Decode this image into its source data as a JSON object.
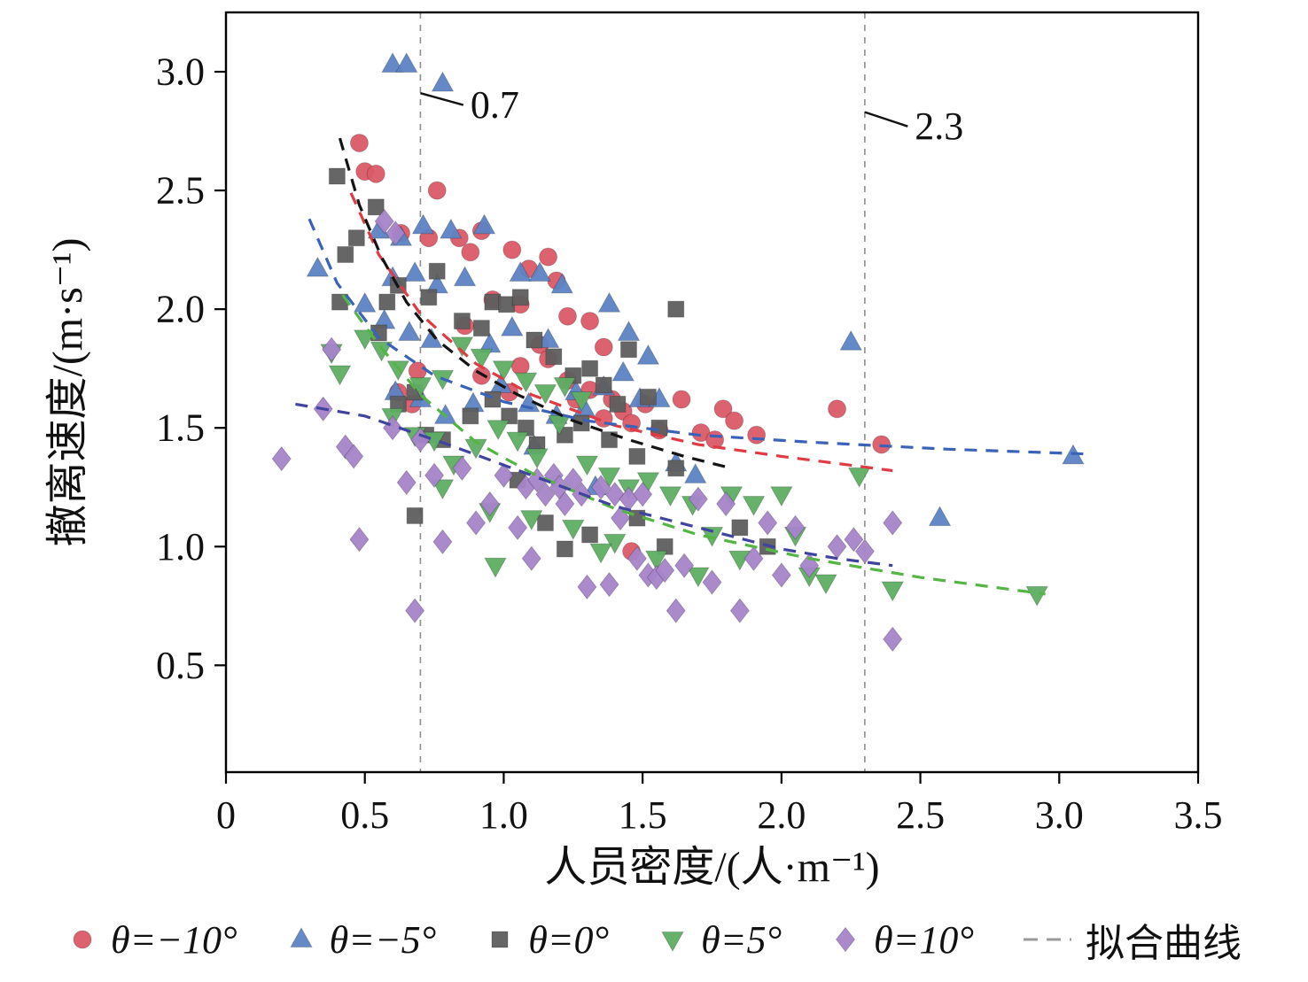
{
  "chart_data": {
    "type": "scatter",
    "title": "",
    "xlabel": "人员密度/(人·m⁻¹)",
    "ylabel": "撤离速度/(m·s⁻¹)",
    "xlim": [
      0,
      3.5
    ],
    "ylim": [
      0.05,
      3.25
    ],
    "x_tick_values": [
      0,
      0.5,
      1.0,
      1.5,
      2.0,
      2.5,
      3.0,
      3.5
    ],
    "x_tick_labels": [
      "0",
      "0.5",
      "1.0",
      "1.5",
      "2.0",
      "2.5",
      "3.0",
      "3.5"
    ],
    "y_tick_values": [
      0.5,
      1.0,
      1.5,
      2.0,
      2.5,
      3.0
    ],
    "y_tick_labels": [
      "0.5",
      "1.0",
      "1.5",
      "2.0",
      "2.5",
      "3.0"
    ],
    "grid": false,
    "legend_position": "bottom",
    "reference_lines": [
      {
        "x": 0.7,
        "label": "0.7",
        "color": "#8f8f8f",
        "label_x": 0.88,
        "label_y": 2.86,
        "leader_from_y": 2.91
      },
      {
        "x": 2.3,
        "label": "2.3",
        "color": "#8f8f8f",
        "label_x": 2.48,
        "label_y": 2.77,
        "leader_from_y": 2.83
      }
    ],
    "series": [
      {
        "name": "θ=−10°",
        "marker": "circle",
        "color": "#db5a68",
        "points": [
          [
            0.48,
            2.7
          ],
          [
            0.5,
            2.58
          ],
          [
            0.54,
            2.57
          ],
          [
            0.76,
            2.5
          ],
          [
            0.63,
            2.32
          ],
          [
            0.73,
            2.3
          ],
          [
            0.84,
            2.3
          ],
          [
            0.92,
            2.33
          ],
          [
            0.88,
            2.24
          ],
          [
            1.03,
            2.25
          ],
          [
            1.09,
            2.17
          ],
          [
            1.16,
            2.22
          ],
          [
            1.19,
            2.12
          ],
          [
            0.96,
            2.04
          ],
          [
            1.06,
            2.02
          ],
          [
            1.23,
            1.97
          ],
          [
            1.31,
            1.95
          ],
          [
            0.86,
            1.93
          ],
          [
            1.13,
            1.85
          ],
          [
            1.36,
            1.84
          ],
          [
            0.69,
            1.74
          ],
          [
            0.92,
            1.72
          ],
          [
            1.06,
            1.76
          ],
          [
            1.16,
            1.79
          ],
          [
            1.23,
            1.7
          ],
          [
            1.31,
            1.66
          ],
          [
            1.39,
            1.62
          ],
          [
            1.43,
            1.57
          ],
          [
            1.36,
            1.54
          ],
          [
            1.51,
            1.6
          ],
          [
            1.64,
            1.62
          ],
          [
            1.71,
            1.48
          ],
          [
            1.76,
            1.45
          ],
          [
            1.79,
            1.58
          ],
          [
            1.83,
            1.53
          ],
          [
            1.91,
            1.47
          ],
          [
            2.2,
            1.58
          ],
          [
            2.36,
            1.43
          ],
          [
            0.62,
            1.65
          ],
          [
            0.67,
            1.6
          ],
          [
            1.26,
            1.62
          ],
          [
            1.46,
            1.52
          ],
          [
            1.56,
            1.49
          ],
          [
            1.46,
            0.98
          ],
          [
            1.02,
            1.65
          ]
        ]
      },
      {
        "name": "θ=−5°",
        "marker": "triangle-up",
        "color": "#5c83c4",
        "points": [
          [
            0.6,
            3.03
          ],
          [
            0.65,
            3.03
          ],
          [
            0.78,
            2.95
          ],
          [
            0.33,
            2.17
          ],
          [
            0.55,
            2.33
          ],
          [
            0.63,
            2.3
          ],
          [
            0.71,
            2.35
          ],
          [
            0.81,
            2.33
          ],
          [
            0.93,
            2.35
          ],
          [
            0.6,
            2.13
          ],
          [
            0.68,
            2.15
          ],
          [
            0.76,
            2.1
          ],
          [
            0.86,
            2.13
          ],
          [
            1.06,
            2.15
          ],
          [
            1.13,
            2.15
          ],
          [
            1.21,
            2.1
          ],
          [
            1.38,
            2.02
          ],
          [
            1.45,
            1.9
          ],
          [
            1.52,
            1.8
          ],
          [
            0.57,
            1.95
          ],
          [
            0.66,
            1.9
          ],
          [
            0.74,
            1.87
          ],
          [
            0.95,
            1.85
          ],
          [
            1.03,
            1.92
          ],
          [
            1.16,
            1.87
          ],
          [
            1.26,
            1.65
          ],
          [
            1.36,
            1.67
          ],
          [
            1.43,
            1.73
          ],
          [
            1.49,
            1.62
          ],
          [
            1.56,
            1.62
          ],
          [
            1.62,
            1.35
          ],
          [
            1.69,
            1.3
          ],
          [
            0.61,
            1.65
          ],
          [
            0.7,
            1.62
          ],
          [
            0.79,
            1.55
          ],
          [
            0.89,
            1.6
          ],
          [
            0.99,
            1.68
          ],
          [
            1.09,
            1.6
          ],
          [
            1.19,
            1.55
          ],
          [
            1.29,
            1.58
          ],
          [
            2.25,
            1.86
          ],
          [
            2.57,
            1.12
          ],
          [
            3.05,
            1.38
          ],
          [
            0.5,
            2.02
          ],
          [
            1.33,
            1.25
          ],
          [
            1.11,
            1.42
          ]
        ]
      },
      {
        "name": "θ=0°",
        "marker": "square",
        "color": "#5e5e5e",
        "points": [
          [
            0.4,
            2.56
          ],
          [
            0.43,
            2.23
          ],
          [
            0.47,
            2.3
          ],
          [
            0.54,
            2.43
          ],
          [
            0.41,
            2.03
          ],
          [
            0.55,
            1.9
          ],
          [
            0.58,
            2.03
          ],
          [
            0.62,
            2.1
          ],
          [
            0.73,
            2.05
          ],
          [
            0.76,
            2.16
          ],
          [
            0.85,
            1.95
          ],
          [
            0.92,
            1.92
          ],
          [
            0.96,
            2.03
          ],
          [
            1.01,
            2.02
          ],
          [
            1.06,
            2.05
          ],
          [
            1.11,
            1.87
          ],
          [
            1.18,
            1.8
          ],
          [
            1.25,
            1.72
          ],
          [
            1.31,
            1.75
          ],
          [
            1.36,
            1.68
          ],
          [
            1.41,
            1.6
          ],
          [
            1.45,
            1.83
          ],
          [
            1.52,
            1.63
          ],
          [
            1.62,
            2.0
          ],
          [
            0.62,
            1.6
          ],
          [
            0.68,
            1.65
          ],
          [
            0.72,
            1.47
          ],
          [
            0.78,
            1.45
          ],
          [
            0.88,
            1.55
          ],
          [
            0.96,
            1.62
          ],
          [
            1.02,
            1.55
          ],
          [
            1.08,
            1.5
          ],
          [
            1.12,
            1.43
          ],
          [
            1.22,
            1.47
          ],
          [
            1.28,
            1.52
          ],
          [
            1.38,
            1.45
          ],
          [
            1.48,
            1.38
          ],
          [
            1.56,
            1.5
          ],
          [
            0.68,
            1.13
          ],
          [
            1.05,
            1.28
          ],
          [
            1.15,
            1.1
          ],
          [
            1.22,
            0.99
          ],
          [
            1.31,
            1.05
          ],
          [
            1.48,
            1.12
          ],
          [
            1.58,
            1.0
          ],
          [
            1.85,
            1.08
          ],
          [
            1.95,
            1.0
          ],
          [
            1.62,
            1.33
          ]
        ]
      },
      {
        "name": "θ=5°",
        "marker": "triangle-down",
        "color": "#5fae64",
        "points": [
          [
            0.38,
            1.82
          ],
          [
            0.41,
            1.73
          ],
          [
            0.5,
            1.88
          ],
          [
            0.56,
            1.83
          ],
          [
            0.62,
            1.75
          ],
          [
            0.7,
            1.68
          ],
          [
            0.78,
            1.71
          ],
          [
            0.85,
            1.85
          ],
          [
            0.92,
            1.8
          ],
          [
            1.0,
            1.75
          ],
          [
            1.08,
            1.7
          ],
          [
            1.15,
            1.65
          ],
          [
            1.22,
            1.68
          ],
          [
            1.28,
            1.62
          ],
          [
            0.6,
            1.55
          ],
          [
            0.68,
            1.47
          ],
          [
            0.75,
            1.45
          ],
          [
            0.82,
            1.35
          ],
          [
            0.9,
            1.42
          ],
          [
            0.98,
            1.5
          ],
          [
            1.05,
            1.45
          ],
          [
            1.12,
            1.38
          ],
          [
            1.2,
            1.52
          ],
          [
            1.3,
            1.35
          ],
          [
            1.38,
            1.3
          ],
          [
            1.45,
            1.25
          ],
          [
            1.52,
            1.28
          ],
          [
            1.6,
            1.22
          ],
          [
            1.68,
            1.18
          ],
          [
            1.75,
            1.05
          ],
          [
            1.82,
            1.22
          ],
          [
            1.9,
            1.18
          ],
          [
            2.0,
            1.22
          ],
          [
            2.1,
            0.88
          ],
          [
            2.16,
            0.85
          ],
          [
            2.28,
            1.3
          ],
          [
            2.4,
            0.82
          ],
          [
            2.92,
            0.8
          ],
          [
            0.78,
            1.25
          ],
          [
            0.95,
            1.15
          ],
          [
            1.1,
            1.12
          ],
          [
            1.25,
            1.08
          ],
          [
            1.4,
            1.02
          ],
          [
            1.55,
            0.95
          ],
          [
            1.7,
            0.88
          ],
          [
            0.97,
            0.92
          ],
          [
            1.35,
            0.98
          ],
          [
            1.85,
            0.95
          ],
          [
            2.05,
            1.05
          ]
        ]
      },
      {
        "name": "θ=10°",
        "marker": "diamond",
        "color": "#a784ca",
        "points": [
          [
            0.2,
            1.37
          ],
          [
            0.35,
            1.58
          ],
          [
            0.38,
            1.83
          ],
          [
            0.43,
            1.42
          ],
          [
            0.46,
            1.38
          ],
          [
            0.48,
            1.03
          ],
          [
            0.57,
            2.37
          ],
          [
            0.61,
            2.32
          ],
          [
            0.6,
            1.5
          ],
          [
            0.65,
            1.27
          ],
          [
            0.7,
            1.45
          ],
          [
            0.75,
            1.3
          ],
          [
            0.78,
            1.02
          ],
          [
            0.85,
            1.33
          ],
          [
            0.9,
            1.1
          ],
          [
            0.95,
            1.18
          ],
          [
            1.0,
            1.3
          ],
          [
            1.05,
            1.08
          ],
          [
            1.08,
            1.25
          ],
          [
            1.1,
            0.95
          ],
          [
            1.12,
            1.28
          ],
          [
            1.15,
            1.22
          ],
          [
            1.18,
            1.3
          ],
          [
            1.2,
            1.25
          ],
          [
            1.22,
            1.18
          ],
          [
            1.25,
            1.28
          ],
          [
            1.28,
            1.22
          ],
          [
            1.3,
            0.83
          ],
          [
            1.35,
            1.25
          ],
          [
            1.38,
            0.84
          ],
          [
            1.4,
            1.22
          ],
          [
            1.42,
            1.12
          ],
          [
            1.45,
            1.2
          ],
          [
            1.48,
            0.95
          ],
          [
            1.5,
            1.22
          ],
          [
            1.52,
            0.88
          ],
          [
            1.55,
            0.87
          ],
          [
            1.58,
            0.9
          ],
          [
            1.62,
            0.73
          ],
          [
            1.65,
            0.92
          ],
          [
            1.7,
            1.2
          ],
          [
            1.75,
            0.85
          ],
          [
            1.8,
            1.18
          ],
          [
            1.85,
            0.73
          ],
          [
            1.9,
            0.95
          ],
          [
            1.95,
            1.1
          ],
          [
            2.0,
            0.88
          ],
          [
            2.05,
            1.08
          ],
          [
            2.1,
            0.92
          ],
          [
            2.2,
            1.0
          ],
          [
            2.26,
            1.03
          ],
          [
            2.3,
            0.98
          ],
          [
            2.4,
            0.61
          ],
          [
            2.4,
            1.1
          ],
          [
            0.68,
            0.73
          ]
        ]
      }
    ],
    "fit_curves": [
      {
        "name": "fit-theta-minus10",
        "color": "#e03b44",
        "points": [
          [
            0.45,
            2.49
          ],
          [
            0.55,
            2.23
          ],
          [
            0.7,
            1.98
          ],
          [
            0.9,
            1.77
          ],
          [
            1.1,
            1.64
          ],
          [
            1.4,
            1.51
          ],
          [
            1.7,
            1.43
          ],
          [
            2.0,
            1.38
          ],
          [
            2.2,
            1.35
          ],
          [
            2.4,
            1.32
          ]
        ]
      },
      {
        "name": "fit-theta-minus5",
        "color": "#3a62b8",
        "points": [
          [
            0.3,
            2.38
          ],
          [
            0.4,
            2.11
          ],
          [
            0.55,
            1.88
          ],
          [
            0.75,
            1.72
          ],
          [
            1.0,
            1.61
          ],
          [
            1.3,
            1.53
          ],
          [
            1.7,
            1.47
          ],
          [
            2.1,
            1.44
          ],
          [
            2.6,
            1.41
          ],
          [
            3.1,
            1.39
          ]
        ]
      },
      {
        "name": "fit-theta-0",
        "color": "#141414",
        "points": [
          [
            0.41,
            2.72
          ],
          [
            0.48,
            2.44
          ],
          [
            0.56,
            2.22
          ],
          [
            0.65,
            2.03
          ],
          [
            0.76,
            1.87
          ],
          [
            0.9,
            1.74
          ],
          [
            1.05,
            1.64
          ],
          [
            1.25,
            1.53
          ],
          [
            1.45,
            1.45
          ],
          [
            1.65,
            1.38
          ],
          [
            1.82,
            1.33
          ]
        ]
      },
      {
        "name": "fit-theta-5",
        "color": "#54b545",
        "points": [
          [
            0.42,
            2.06
          ],
          [
            0.55,
            1.85
          ],
          [
            0.7,
            1.64
          ],
          [
            0.9,
            1.44
          ],
          [
            1.1,
            1.31
          ],
          [
            1.4,
            1.16
          ],
          [
            1.7,
            1.05
          ],
          [
            2.1,
            0.95
          ],
          [
            2.5,
            0.87
          ],
          [
            2.95,
            0.8
          ]
        ]
      },
      {
        "name": "fit-theta-10",
        "color": "#41449e",
        "points": [
          [
            0.25,
            1.6
          ],
          [
            0.5,
            1.55
          ],
          [
            0.8,
            1.43
          ],
          [
            1.1,
            1.3
          ],
          [
            1.4,
            1.17
          ],
          [
            1.7,
            1.08
          ],
          [
            2.0,
            0.99
          ],
          [
            2.2,
            0.95
          ],
          [
            2.4,
            0.92
          ]
        ]
      }
    ],
    "legend_fit_label": "拟合曲线",
    "legend_fit_color": "#9a9a9a"
  }
}
